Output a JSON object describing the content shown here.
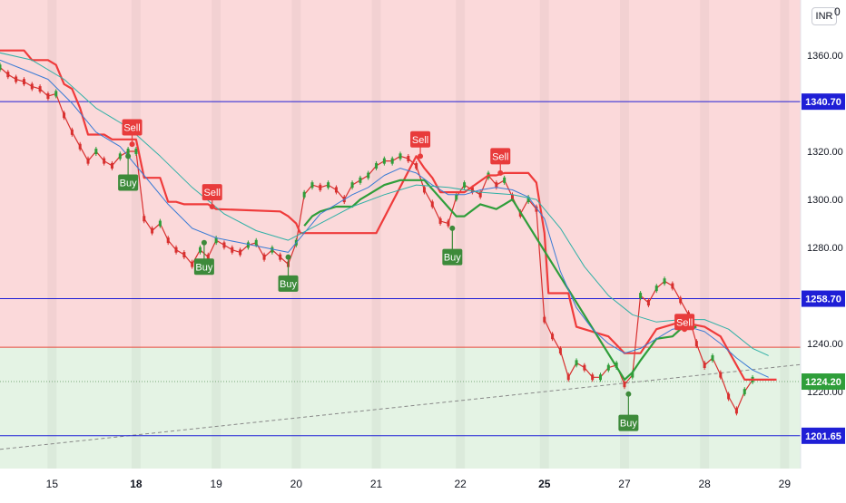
{
  "currency": "INR",
  "top_partial_label": "0",
  "chart_data": {
    "type": "line",
    "y_range": [
      1188,
      1383
    ],
    "y_ticks": [
      "1360.00",
      "1340.00",
      "1320.00",
      "1300.00",
      "1280.00",
      "1260.00",
      "1240.00",
      "1220.00"
    ],
    "y_tick_values": [
      1360,
      1340,
      1320,
      1300,
      1280,
      1260,
      1240,
      1220
    ],
    "x_range": [
      0,
      100
    ],
    "x_ticks": [
      {
        "label": "15",
        "x": 6.5,
        "bold": false
      },
      {
        "label": "18",
        "x": 17,
        "bold": true
      },
      {
        "label": "19",
        "x": 27,
        "bold": false
      },
      {
        "label": "20",
        "x": 37,
        "bold": false
      },
      {
        "label": "21",
        "x": 47,
        "bold": false
      },
      {
        "label": "22",
        "x": 57.5,
        "bold": false
      },
      {
        "label": "25",
        "x": 68,
        "bold": true
      },
      {
        "label": "27",
        "x": 78,
        "bold": false
      },
      {
        "label": "28",
        "x": 88,
        "bold": false
      },
      {
        "label": "29",
        "x": 98,
        "bold": false
      }
    ],
    "current_price": "1224.20",
    "current_price_value": 1224.2,
    "horizontal_levels": [
      {
        "label": "1340.70",
        "value": 1340.7,
        "color": "#1f1fd6"
      },
      {
        "label": "1258.70",
        "value": 1258.7,
        "color": "#1f1fd6"
      },
      {
        "label": "1201.65",
        "value": 1201.65,
        "color": "#1f1fd6"
      }
    ],
    "zone_boundary": {
      "value": 1238.5,
      "color": "#e84a3e"
    },
    "zones": [
      {
        "name": "upper",
        "from": 1238.5,
        "to": 1383,
        "color": "#fbd9da"
      },
      {
        "name": "lower",
        "from": 1188,
        "to": 1238.5,
        "color": "#e4f3e4"
      }
    ],
    "trendline": {
      "points": [
        [
          0,
          1196
        ],
        [
          102,
          1232
        ]
      ],
      "color": "#888888"
    },
    "series": [
      {
        "name": "",
        "kind": "price",
        "color": "#d8302f",
        "points": [
          [
            0,
            1355
          ],
          [
            1,
            1352
          ],
          [
            2,
            1350
          ],
          [
            3,
            1349
          ],
          [
            4,
            1347
          ],
          [
            5,
            1346
          ],
          [
            6,
            1343
          ],
          [
            7,
            1344
          ],
          [
            8,
            1335
          ],
          [
            9,
            1328
          ],
          [
            10,
            1322
          ],
          [
            11,
            1316
          ],
          [
            12,
            1320
          ],
          [
            13,
            1316
          ],
          [
            14,
            1314
          ],
          [
            15,
            1318
          ],
          [
            16,
            1320
          ],
          [
            17,
            1320
          ],
          [
            18,
            1292
          ],
          [
            19,
            1287
          ],
          [
            20,
            1290
          ],
          [
            21,
            1283
          ],
          [
            22,
            1279
          ],
          [
            23,
            1277
          ],
          [
            24,
            1273
          ],
          [
            25,
            1279
          ],
          [
            26,
            1276
          ],
          [
            27,
            1283
          ],
          [
            28,
            1281
          ],
          [
            29,
            1279
          ],
          [
            30,
            1278
          ],
          [
            31,
            1281
          ],
          [
            32,
            1282
          ],
          [
            33,
            1276
          ],
          [
            34,
            1279
          ],
          [
            35,
            1276
          ],
          [
            36,
            1273
          ],
          [
            37,
            1282
          ],
          [
            38,
            1302
          ],
          [
            39,
            1306
          ],
          [
            40,
            1305
          ],
          [
            41,
            1306
          ],
          [
            42,
            1304
          ],
          [
            43,
            1300
          ],
          [
            44,
            1306
          ],
          [
            45,
            1308
          ],
          [
            46,
            1310
          ],
          [
            47,
            1314
          ],
          [
            48,
            1316
          ],
          [
            49,
            1316
          ],
          [
            50,
            1318
          ],
          [
            51,
            1317
          ],
          [
            52,
            1314
          ],
          [
            53,
            1304
          ],
          [
            54,
            1298
          ],
          [
            55,
            1291
          ],
          [
            56,
            1290
          ],
          [
            57,
            1301
          ],
          [
            58,
            1306
          ],
          [
            59,
            1304
          ],
          [
            60,
            1302
          ],
          [
            61,
            1310
          ],
          [
            62,
            1306
          ],
          [
            63,
            1308
          ],
          [
            64,
            1301
          ],
          [
            65,
            1294
          ],
          [
            66,
            1300
          ],
          [
            67,
            1296
          ],
          [
            68,
            1250
          ],
          [
            69,
            1243
          ],
          [
            70,
            1237
          ],
          [
            71,
            1226
          ],
          [
            72,
            1232
          ],
          [
            73,
            1230
          ],
          [
            74,
            1226
          ],
          [
            75,
            1226
          ],
          [
            76,
            1230
          ],
          [
            77,
            1231
          ],
          [
            78,
            1223
          ],
          [
            79,
            1227
          ],
          [
            80,
            1260
          ],
          [
            81,
            1257
          ],
          [
            82,
            1263
          ],
          [
            83,
            1266
          ],
          [
            84,
            1264
          ],
          [
            85,
            1258
          ],
          [
            86,
            1252
          ],
          [
            87,
            1240
          ],
          [
            88,
            1231
          ],
          [
            89,
            1234
          ],
          [
            90,
            1227
          ],
          [
            91,
            1218
          ],
          [
            92,
            1212
          ],
          [
            93,
            1220
          ],
          [
            94,
            1225
          ]
        ]
      },
      {
        "name": "",
        "kind": "red-stop",
        "color": "#ef3b3b",
        "points": [
          [
            0,
            1362
          ],
          [
            3,
            1362
          ],
          [
            4,
            1358
          ],
          [
            6,
            1358
          ],
          [
            7,
            1356
          ],
          [
            8,
            1348
          ],
          [
            9,
            1346
          ],
          [
            10,
            1338
          ],
          [
            11,
            1327
          ],
          [
            13,
            1327
          ],
          [
            14,
            1325
          ],
          [
            17,
            1325
          ],
          [
            18,
            1309
          ],
          [
            20,
            1309
          ],
          [
            21,
            1299
          ],
          [
            22,
            1299
          ],
          [
            23,
            1298
          ],
          [
            26,
            1298
          ],
          [
            27,
            1296
          ],
          [
            35,
            1295
          ],
          [
            36,
            1293
          ],
          [
            37,
            1290
          ],
          [
            37.5,
            1286
          ],
          [
            44,
            1286
          ],
          [
            47,
            1286
          ],
          [
            52,
            1318
          ],
          [
            53,
            1313
          ],
          [
            54,
            1309
          ],
          [
            55,
            1303
          ],
          [
            57,
            1303
          ],
          [
            58,
            1303
          ],
          [
            61,
            1310
          ],
          [
            62,
            1310
          ],
          [
            63,
            1311
          ],
          [
            66,
            1311
          ],
          [
            67,
            1307
          ],
          [
            68,
            1286
          ],
          [
            68.5,
            1261
          ],
          [
            71,
            1261
          ],
          [
            72,
            1247
          ],
          [
            74,
            1245
          ],
          [
            76,
            1243
          ],
          [
            78,
            1236
          ],
          [
            80,
            1236
          ],
          [
            82,
            1246
          ],
          [
            85,
            1249
          ],
          [
            88,
            1247
          ],
          [
            90,
            1243
          ],
          [
            93,
            1225
          ],
          [
            97,
            1225
          ]
        ]
      },
      {
        "name": "",
        "kind": "green-stop",
        "color": "#2f9e3a",
        "points": [
          [
            38,
            1289
          ],
          [
            39,
            1293
          ],
          [
            40,
            1295
          ],
          [
            42,
            1297
          ],
          [
            44,
            1297
          ],
          [
            45,
            1300
          ],
          [
            46,
            1302
          ],
          [
            48,
            1306
          ],
          [
            50,
            1308
          ],
          [
            53,
            1308
          ],
          [
            57,
            1293
          ],
          [
            58,
            1293
          ],
          [
            60,
            1298
          ],
          [
            62,
            1296
          ],
          [
            63,
            1298
          ],
          [
            64,
            1300
          ],
          [
            78,
            1225
          ],
          [
            79,
            1228
          ],
          [
            80,
            1233
          ],
          [
            82,
            1242
          ],
          [
            84,
            1243
          ],
          [
            85,
            1246
          ],
          [
            87,
            1247
          ]
        ]
      },
      {
        "name": "",
        "kind": "ema-fast",
        "color": "#3a7bd5",
        "points": [
          [
            0,
            1358
          ],
          [
            3,
            1354
          ],
          [
            6,
            1350
          ],
          [
            9,
            1340
          ],
          [
            12,
            1328
          ],
          [
            15,
            1322
          ],
          [
            18,
            1310
          ],
          [
            21,
            1298
          ],
          [
            24,
            1288
          ],
          [
            27,
            1284
          ],
          [
            30,
            1282
          ],
          [
            33,
            1280
          ],
          [
            36,
            1278
          ],
          [
            38,
            1286
          ],
          [
            40,
            1294
          ],
          [
            42,
            1298
          ],
          [
            44,
            1302
          ],
          [
            46,
            1305
          ],
          [
            48,
            1310
          ],
          [
            50,
            1313
          ],
          [
            52,
            1311
          ],
          [
            54,
            1306
          ],
          [
            56,
            1302
          ],
          [
            58,
            1302
          ],
          [
            60,
            1304
          ],
          [
            62,
            1305
          ],
          [
            64,
            1304
          ],
          [
            66,
            1301
          ],
          [
            68,
            1292
          ],
          [
            70,
            1270
          ],
          [
            72,
            1255
          ],
          [
            74,
            1246
          ],
          [
            76,
            1240
          ],
          [
            78,
            1236
          ],
          [
            80,
            1238
          ],
          [
            82,
            1242
          ],
          [
            84,
            1246
          ],
          [
            86,
            1247
          ],
          [
            88,
            1245
          ],
          [
            90,
            1240
          ],
          [
            92,
            1234
          ],
          [
            94,
            1229
          ],
          [
            96,
            1226
          ]
        ]
      },
      {
        "name": "",
        "kind": "ema-slow",
        "color": "#2fb0a6",
        "points": [
          [
            0,
            1361
          ],
          [
            4,
            1358
          ],
          [
            8,
            1350
          ],
          [
            12,
            1338
          ],
          [
            16,
            1330
          ],
          [
            20,
            1318
          ],
          [
            24,
            1305
          ],
          [
            28,
            1294
          ],
          [
            32,
            1287
          ],
          [
            36,
            1283
          ],
          [
            40,
            1290
          ],
          [
            44,
            1297
          ],
          [
            48,
            1302
          ],
          [
            52,
            1306
          ],
          [
            56,
            1305
          ],
          [
            60,
            1303
          ],
          [
            64,
            1302
          ],
          [
            67,
            1300
          ],
          [
            70,
            1288
          ],
          [
            73,
            1272
          ],
          [
            76,
            1260
          ],
          [
            79,
            1252
          ],
          [
            82,
            1249
          ],
          [
            85,
            1250
          ],
          [
            88,
            1250
          ],
          [
            91,
            1246
          ],
          [
            94,
            1238
          ],
          [
            96,
            1235
          ]
        ]
      }
    ],
    "signals": [
      {
        "label": "Sell",
        "kind": "sell",
        "x": 16.5,
        "value": 1330,
        "anchor_value": 1323
      },
      {
        "label": "Buy",
        "kind": "buy",
        "x": 16,
        "value": 1307,
        "anchor_value": 1318
      },
      {
        "label": "Sell",
        "kind": "sell",
        "x": 26.5,
        "value": 1303,
        "anchor_value": 1297
      },
      {
        "label": "Buy",
        "kind": "buy",
        "x": 25.5,
        "value": 1272,
        "anchor_value": 1282
      },
      {
        "label": "Buy",
        "kind": "buy",
        "x": 36,
        "value": 1265,
        "anchor_value": 1276
      },
      {
        "label": "Sell",
        "kind": "sell",
        "x": 52.5,
        "value": 1325,
        "anchor_value": 1318
      },
      {
        "label": "Buy",
        "kind": "buy",
        "x": 56.5,
        "value": 1276,
        "anchor_value": 1288
      },
      {
        "label": "Sell",
        "kind": "sell",
        "x": 62.5,
        "value": 1318,
        "anchor_value": 1311
      },
      {
        "label": "Sell",
        "kind": "sell",
        "x": 85.5,
        "value": 1249,
        "anchor_value": 1246
      },
      {
        "label": "Buy",
        "kind": "buy",
        "x": 78.5,
        "value": 1207,
        "anchor_value": 1219
      }
    ]
  }
}
